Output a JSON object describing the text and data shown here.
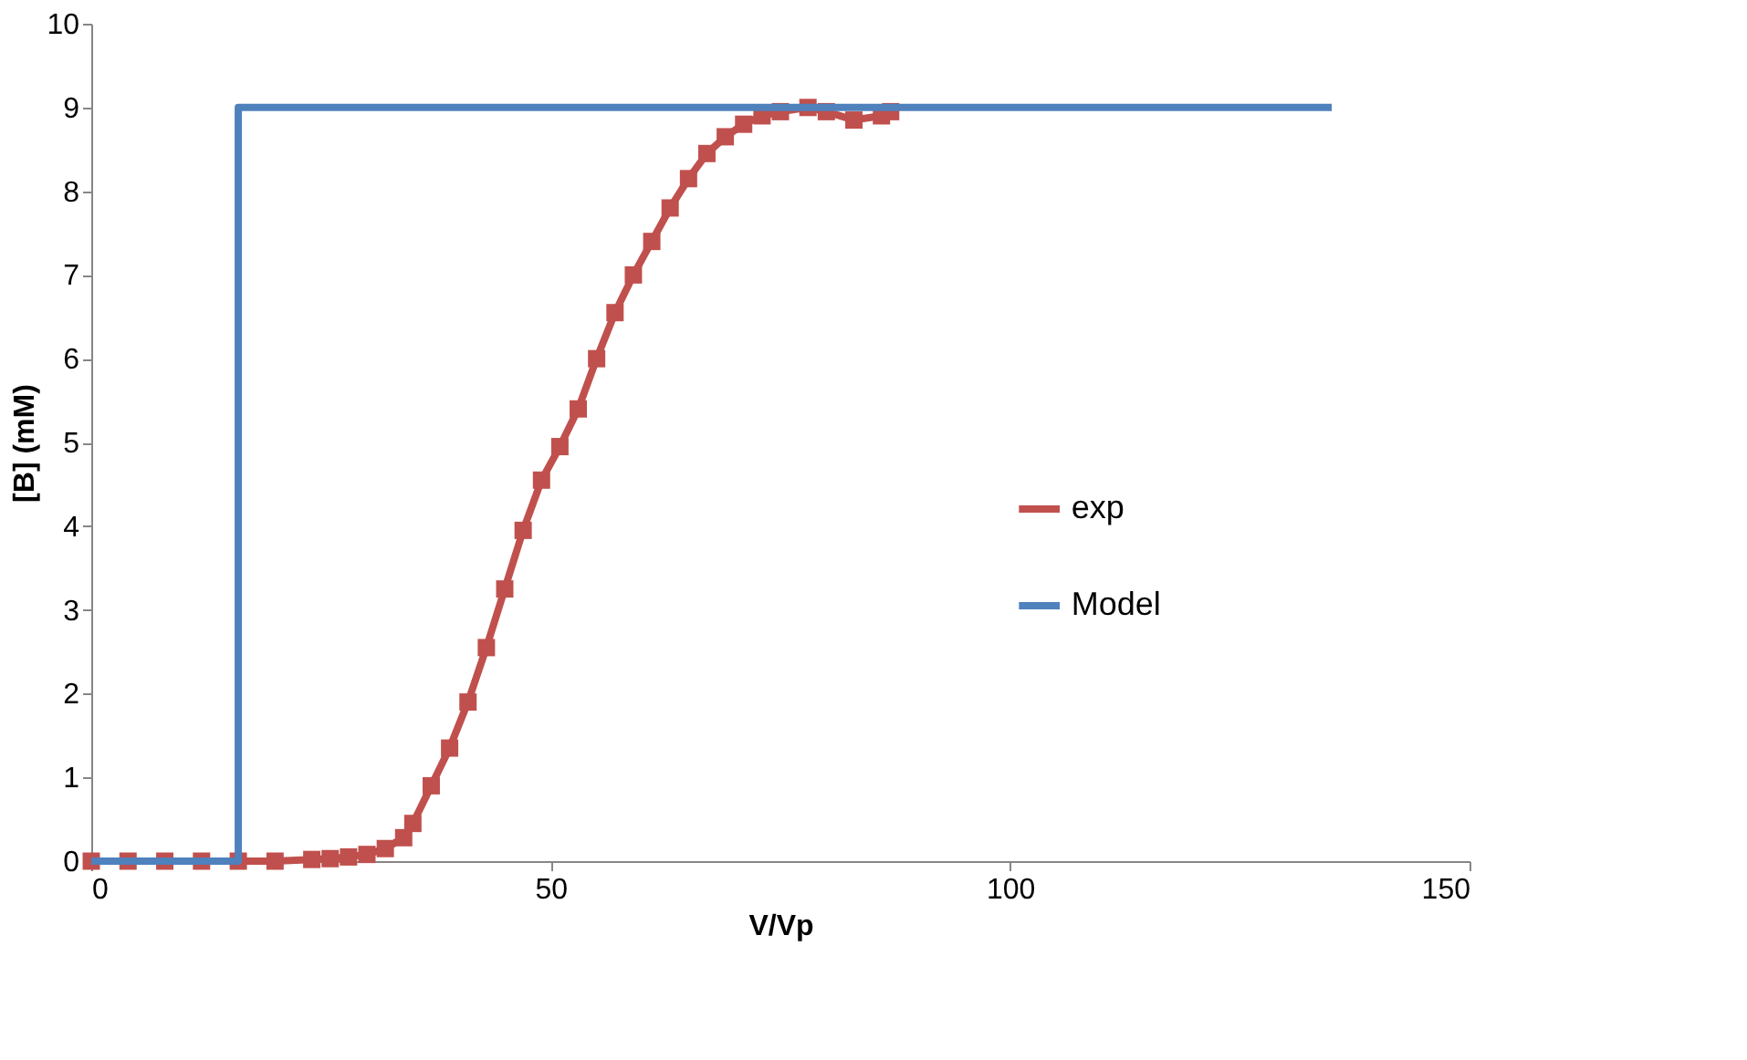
{
  "chart_data": {
    "type": "line",
    "xlabel": "V/Vp",
    "ylabel": "[B] (mM)",
    "xlim": [
      0,
      150
    ],
    "xticks": [
      0,
      50,
      100,
      150
    ],
    "ylim": [
      0,
      10
    ],
    "yticks": [
      0,
      1,
      2,
      3,
      4,
      5,
      6,
      7,
      8,
      9,
      10
    ],
    "grid": false,
    "legend": "right",
    "line_style": "solid",
    "series": [
      {
        "name": "exp",
        "color": "#c0504d",
        "marker": "square",
        "x": [
          0,
          4,
          8,
          12,
          16,
          20,
          24,
          26,
          28,
          30,
          32,
          34,
          35,
          37,
          39,
          41,
          43,
          45,
          47,
          49,
          51,
          53,
          55,
          57,
          59,
          61,
          63,
          65,
          67,
          69,
          71,
          73,
          75,
          78,
          80,
          83,
          86,
          87
        ],
        "values": [
          0,
          0,
          0,
          0,
          0,
          0,
          0.02,
          0.03,
          0.05,
          0.08,
          0.15,
          0.28,
          0.45,
          0.9,
          1.35,
          1.9,
          2.55,
          3.25,
          3.95,
          4.55,
          4.95,
          5.4,
          6.0,
          6.55,
          7.0,
          7.4,
          7.8,
          8.15,
          8.45,
          8.65,
          8.8,
          8.9,
          8.95,
          9.0,
          8.95,
          8.85,
          8.9,
          8.95
        ]
      },
      {
        "name": "Model",
        "color": "#4f81bd",
        "marker": "none",
        "x": [
          0,
          16,
          16,
          135
        ],
        "values": [
          0,
          0,
          9,
          9
        ]
      }
    ]
  }
}
